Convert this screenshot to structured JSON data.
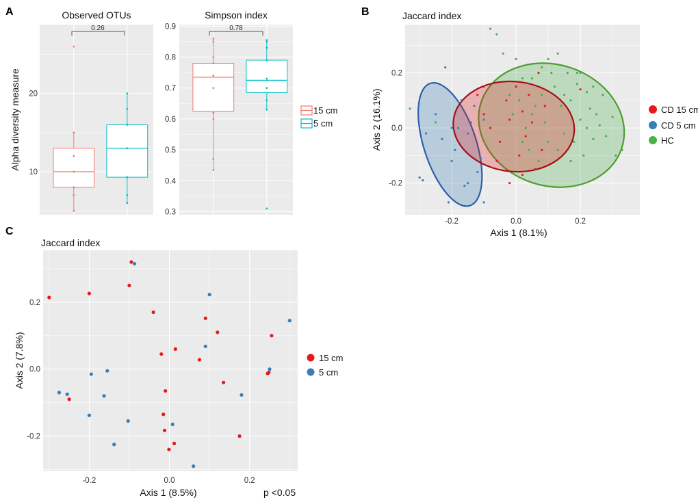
{
  "panel_letters": {
    "a": "A",
    "b": "B",
    "c": "C"
  },
  "colors": {
    "panel_bg": "#ebebeb",
    "grid": "#ffffff",
    "red": "#e41a1c",
    "blue": "#377eb8",
    "green": "#4daf4a",
    "box_red": "#f8766d",
    "box_teal": "#00bfc4",
    "ell_red": "#a50f15",
    "ell_blue": "#2c5fa8",
    "ell_green": "#4a9e2f"
  },
  "chart_data": [
    {
      "id": "A1",
      "type": "box",
      "title": "Observed OTUs",
      "ylabel": "Alpha diversity measure",
      "ylim": [
        4.5,
        28.8
      ],
      "yticks": [
        10,
        20
      ],
      "yticklabels": [
        "10",
        "20"
      ],
      "bracket_label": "0.26",
      "groups": [
        {
          "name": "15 cm",
          "q1": 8,
          "median": 10,
          "q3": 13,
          "whisker_low": 5,
          "whisker_high": 15,
          "points": [
            5,
            7,
            8,
            10,
            12,
            15,
            26
          ]
        },
        {
          "name": "5 cm",
          "q1": 9.3,
          "median": 13,
          "q3": 16,
          "whisker_low": 6,
          "whisker_high": 20,
          "points": [
            6,
            7,
            9.3,
            13,
            16,
            18,
            20
          ]
        }
      ]
    },
    {
      "id": "A2",
      "type": "box",
      "title": "Simpson index",
      "ylim": [
        0.29,
        0.905
      ],
      "yticks": [
        0.3,
        0.4,
        0.5,
        0.6,
        0.7,
        0.8,
        0.9
      ],
      "yticklabels": [
        "0.3",
        "0.4",
        "0.5",
        "0.6",
        "0.7",
        "0.8",
        "0.9"
      ],
      "bracket_label": "0.78",
      "groups": [
        {
          "name": "15 cm",
          "q1": 0.625,
          "median": 0.735,
          "q3": 0.78,
          "whisker_low": 0.435,
          "whisker_high": 0.86,
          "points": [
            0.435,
            0.47,
            0.6,
            0.62,
            0.7,
            0.74,
            0.78,
            0.8,
            0.85,
            0.86
          ]
        },
        {
          "name": "5 cm",
          "q1": 0.685,
          "median": 0.725,
          "q3": 0.79,
          "whisker_low": 0.63,
          "whisker_high": 0.855,
          "points": [
            0.31,
            0.63,
            0.66,
            0.7,
            0.73,
            0.79,
            0.83,
            0.85,
            0.855
          ]
        }
      ],
      "legend": [
        "15 cm",
        "5 cm"
      ]
    },
    {
      "id": "B",
      "type": "scatter",
      "title": "Jaccard index",
      "xlabel": "Axis 1 (8.1%)",
      "ylabel": "Axis 2 (16.1%)",
      "xlim": [
        -0.345,
        0.385
      ],
      "ylim": [
        -0.315,
        0.375
      ],
      "xticks": [
        -0.2,
        0.0,
        0.2
      ],
      "xticklabels": [
        "-0.2",
        "0.0",
        "0.2"
      ],
      "yticks": [
        -0.2,
        0.0,
        0.2
      ],
      "yticklabels": [
        "-0.2",
        "0.0",
        "0.2"
      ],
      "legend": [
        "CD 15 cm",
        "CD 5 cm",
        "HC"
      ],
      "series": [
        {
          "name": "CD 15 cm",
          "color_key": "red",
          "points": [
            [
              -0.12,
              0.12
            ],
            [
              -0.1,
              0.05
            ],
            [
              -0.08,
              0.0
            ],
            [
              -0.05,
              -0.05
            ],
            [
              -0.03,
              0.1
            ],
            [
              -0.02,
              0.03
            ],
            [
              0.0,
              0.15
            ],
            [
              0.01,
              -0.1
            ],
            [
              0.02,
              0.06
            ],
            [
              0.03,
              -0.03
            ],
            [
              0.04,
              0.12
            ],
            [
              0.05,
              0.02
            ],
            [
              0.06,
              -0.15
            ],
            [
              0.07,
              0.2
            ],
            [
              -0.06,
              -0.12
            ],
            [
              0.02,
              -0.17
            ],
            [
              -0.1,
              0.15
            ],
            [
              0.09,
              0.08
            ],
            [
              0.08,
              -0.08
            ],
            [
              -0.02,
              -0.2
            ],
            [
              0.2,
              0.14
            ]
          ],
          "ellipse": {
            "cx": -0.007,
            "cy": 0.005,
            "rx": 0.14,
            "ry": 0.22,
            "rot": 84
          }
        },
        {
          "name": "CD 5 cm",
          "color_key": "blue",
          "points": [
            [
              -0.3,
              -0.18
            ],
            [
              -0.29,
              -0.19
            ],
            [
              -0.28,
              -0.02
            ],
            [
              -0.25,
              0.05
            ],
            [
              -0.23,
              -0.04
            ],
            [
              -0.21,
              -0.27
            ],
            [
              -0.2,
              0.0
            ],
            [
              -0.19,
              -0.08
            ],
            [
              -0.17,
              0.1
            ],
            [
              -0.16,
              -0.21
            ],
            [
              -0.15,
              -0.02
            ],
            [
              -0.14,
              0.02
            ],
            [
              -0.12,
              -0.16
            ],
            [
              -0.11,
              -0.11
            ],
            [
              -0.1,
              0.03
            ],
            [
              -0.18,
              0.0
            ],
            [
              -0.22,
              0.22
            ],
            [
              -0.1,
              -0.27
            ],
            [
              -0.2,
              -0.12
            ],
            [
              -0.15,
              -0.2
            ],
            [
              -0.13,
              0.08
            ]
          ],
          "ellipse": {
            "cx": -0.205,
            "cy": -0.06,
            "rx": 0.2,
            "ry": 0.095,
            "rot": -72
          }
        },
        {
          "name": "HC",
          "color_key": "green",
          "points": [
            [
              -0.33,
              0.07
            ],
            [
              -0.25,
              0.02
            ],
            [
              -0.08,
              0.36
            ],
            [
              -0.06,
              0.34
            ],
            [
              -0.04,
              0.27
            ],
            [
              -0.02,
              0.12
            ],
            [
              0.0,
              0.25
            ],
            [
              0.02,
              0.18
            ],
            [
              0.04,
              -0.08
            ],
            [
              0.06,
              0.08
            ],
            [
              0.08,
              0.22
            ],
            [
              0.09,
              0.02
            ],
            [
              0.1,
              -0.05
            ],
            [
              0.12,
              0.15
            ],
            [
              0.13,
              0.27
            ],
            [
              0.14,
              0.08
            ],
            [
              0.15,
              -0.02
            ],
            [
              0.16,
              0.2
            ],
            [
              0.17,
              0.1
            ],
            [
              0.18,
              -0.05
            ],
            [
              0.19,
              0.16
            ],
            [
              0.2,
              0.03
            ],
            [
              0.21,
              -0.1
            ],
            [
              0.22,
              0.13
            ],
            [
              0.23,
              0.07
            ],
            [
              0.24,
              -0.04
            ],
            [
              0.25,
              0.05
            ],
            [
              0.26,
              0.01
            ],
            [
              0.27,
              0.12
            ],
            [
              0.28,
              -0.03
            ],
            [
              0.3,
              0.04
            ],
            [
              0.31,
              -0.1
            ],
            [
              0.33,
              -0.08
            ],
            [
              0.1,
              0.25
            ],
            [
              0.11,
              0.2
            ],
            [
              0.05,
              0.05
            ],
            [
              0.03,
              0.0
            ],
            [
              0.07,
              -0.12
            ],
            [
              0.13,
              -0.08
            ],
            [
              0.17,
              -0.12
            ],
            [
              0.2,
              0.2
            ],
            [
              0.22,
              0.0
            ],
            [
              0.15,
              0.12
            ],
            [
              0.08,
              0.12
            ],
            [
              -0.01,
              0.05
            ],
            [
              0.01,
              0.1
            ],
            [
              0.02,
              -0.05
            ],
            [
              0.05,
              0.18
            ],
            [
              0.19,
              0.2
            ],
            [
              0.24,
              0.15
            ]
          ],
          "ellipse": {
            "cx": 0.11,
            "cy": 0.01,
            "rx": 0.23,
            "ry": 0.22,
            "rot": -18
          }
        }
      ]
    },
    {
      "id": "C",
      "type": "scatter",
      "title": "Jaccard index",
      "xlabel": "Axis 1 (8.5%)",
      "ylabel": "Axis 2 (7.8%)",
      "annotation": "p <0.05",
      "xlim": [
        -0.315,
        0.32
      ],
      "ylim": [
        -0.305,
        0.355
      ],
      "xticks": [
        -0.2,
        0.0,
        0.2
      ],
      "xticklabels": [
        "-0.2",
        "0.0",
        "0.2"
      ],
      "yticks": [
        -0.2,
        0.0,
        0.2
      ],
      "yticklabels": [
        "-0.2",
        "0.0",
        "0.2"
      ],
      "legend": [
        "15 cm",
        "5 cm"
      ],
      "series": [
        {
          "name": "15 cm",
          "color_key": "red",
          "points": [
            [
              -0.3,
              0.214
            ],
            [
              -0.2,
              0.226
            ],
            [
              -0.1,
              0.25
            ],
            [
              -0.095,
              0.32
            ],
            [
              -0.04,
              0.17
            ],
            [
              -0.02,
              0.045
            ],
            [
              0.015,
              0.06
            ],
            [
              0.075,
              0.028
            ],
            [
              0.09,
              0.152
            ],
            [
              0.12,
              0.11
            ],
            [
              0.255,
              0.1
            ],
            [
              0.245,
              -0.013
            ],
            [
              0.248,
              -0.01
            ],
            [
              0.135,
              -0.04
            ],
            [
              0.175,
              -0.2
            ],
            [
              -0.25,
              -0.09
            ],
            [
              -0.01,
              -0.065
            ],
            [
              -0.015,
              -0.135
            ],
            [
              -0.012,
              -0.183
            ],
            [
              -0.001,
              -0.24
            ],
            [
              0.012,
              -0.222
            ]
          ]
        },
        {
          "name": "5 cm",
          "color_key": "blue",
          "points": [
            [
              -0.087,
              0.315
            ],
            [
              0.1,
              0.223
            ],
            [
              0.3,
              0.145
            ],
            [
              0.09,
              0.068
            ],
            [
              0.25,
              0.0
            ],
            [
              -0.195,
              -0.015
            ],
            [
              -0.155,
              -0.005
            ],
            [
              -0.275,
              -0.07
            ],
            [
              -0.255,
              -0.075
            ],
            [
              -0.163,
              -0.08
            ],
            [
              0.18,
              -0.077
            ],
            [
              -0.2,
              -0.138
            ],
            [
              -0.103,
              -0.155
            ],
            [
              0.008,
              -0.165
            ],
            [
              -0.138,
              -0.225
            ],
            [
              0.06,
              -0.29
            ]
          ]
        }
      ]
    }
  ]
}
